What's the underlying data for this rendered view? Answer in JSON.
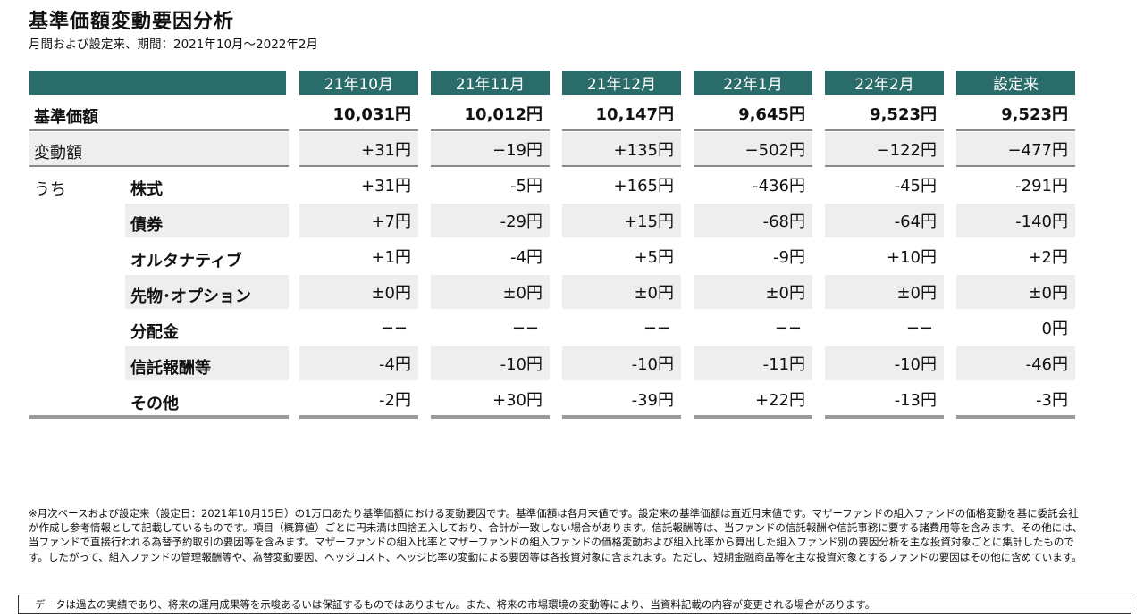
{
  "title": "基準価額変動要因分析",
  "subtitle": "月間および設定来、期間：2021年10月～2022年2月",
  "columns": [
    "21年10月",
    "21年11月",
    "21年12月",
    "22年1月",
    "22年2月",
    "設定来"
  ],
  "rows": {
    "nav": {
      "label": "基準価額",
      "values": [
        "10,031円",
        "10,012円",
        "10,147円",
        "9,645円",
        "9,523円",
        "9,523円"
      ]
    },
    "change": {
      "label": "変動額",
      "values": [
        "+31円",
        "−19円",
        "+135円",
        "−502円",
        "−122円",
        "−477円"
      ]
    }
  },
  "breakdown_label": "うち",
  "breakdown": [
    {
      "label": "株式",
      "values": [
        "+31円",
        "-5円",
        "+165円",
        "-436円",
        "-45円",
        "-291円"
      ]
    },
    {
      "label": "債券",
      "values": [
        "+7円",
        "-29円",
        "+15円",
        "-68円",
        "-64円",
        "-140円"
      ]
    },
    {
      "label": "オルタナティブ",
      "values": [
        "+1円",
        "-4円",
        "+5円",
        "-9円",
        "+10円",
        "+2円"
      ]
    },
    {
      "label": "先物･オプション",
      "values": [
        "±0円",
        "±0円",
        "±0円",
        "±0円",
        "±0円",
        "±0円"
      ]
    },
    {
      "label": "分配金",
      "values": [
        "−−",
        "−−",
        "−−",
        "−−",
        "−−",
        "0円"
      ]
    },
    {
      "label": "信託報酬等",
      "values": [
        "-4円",
        "-10円",
        "-10円",
        "-11円",
        "-10円",
        "-46円"
      ]
    },
    {
      "label": "その他",
      "values": [
        "-2円",
        "+30円",
        "-39円",
        "+22円",
        "-13円",
        "-3円"
      ]
    }
  ],
  "notes": "※月次ベースおよび設定来（設定日：2021年10月15日）の1万口あたり基準価額における変動要因です。基準価額は各月末値です。設定来の基準価額は直近月末値です。マザーファンドの組入ファンドの価格変動を基に委託会社が作成し参考情報として記載しているものです。項目（概算値）ごとに円未満は四捨五入しており、合計が一致しない場合があります。信託報酬等は、当ファンドの信託報酬や信託事務に要する諸費用等を含みます。その他には、当ファンドで直接行われる為替予約取引の要因等を含みます。マザーファンドの組入比率とマザーファンドの組入ファンドの価格変動および組入比率から算出した組入ファンド別の要因分析を主な投資対象ごとに集計したものです。したがって、組入ファンドの管理報酬等や、為替変動要因、ヘッジコスト、ヘッジ比率の変動による要因等は各投資対象に含まれます。ただし、短期金融商品等を主な投資対象とするファンドの要因はその他に含めています。",
  "disclaimer": "データは過去の実績であり、将来の運用成果等を示唆あるいは保証するものではありません。また、将来の市場環境の変動等により、当資料記載の内容が変更される場合があります。",
  "colors": {
    "header_bg": "#2a6c69",
    "band_bg": "#eeeeee",
    "rule": "#8a8a8a"
  }
}
